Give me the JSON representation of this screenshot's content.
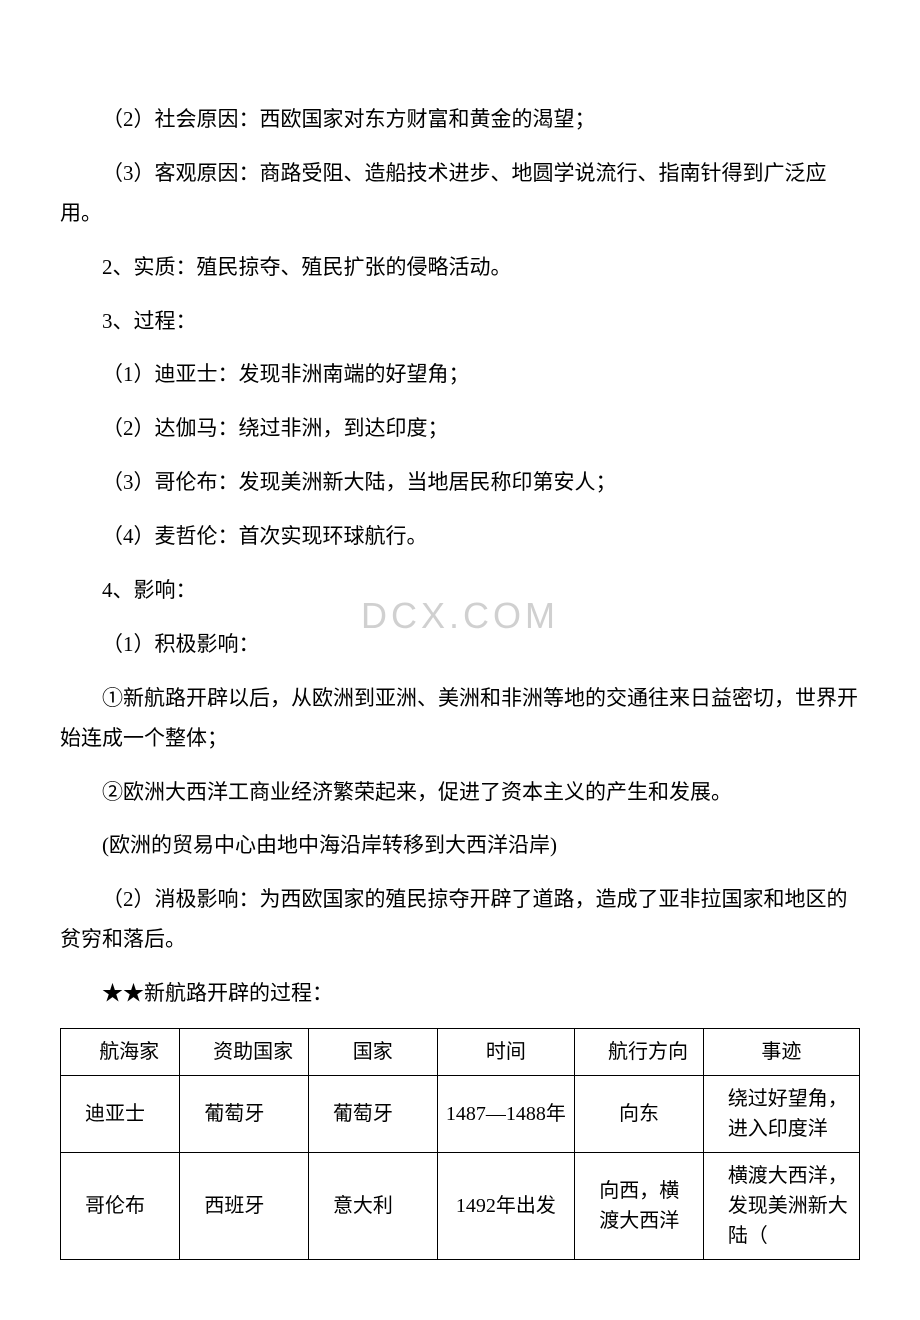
{
  "watermark": "DCX.COM",
  "paragraphs": {
    "p1": "（2）社会原因：西欧国家对东方财富和黄金的渴望；",
    "p2": "（3）客观原因：商路受阻、造船技术进步、地圆学说流行、指南针得到广泛应用。",
    "p3": "2、实质：殖民掠夺、殖民扩张的侵略活动。",
    "p4": "3、过程：",
    "p5": "（1）迪亚士：发现非洲南端的好望角；",
    "p6": "（2）达伽马：绕过非洲，到达印度；",
    "p7": "（3）哥伦布：发现美洲新大陆，当地居民称印第安人；",
    "p8": "（4）麦哲伦：首次实现环球航行。",
    "p9": "4、影响：",
    "p10": "（1）积极影响：",
    "p11": "①新航路开辟以后，从欧洲到亚洲、美洲和非洲等地的交通往来日益密切，世界开始连成一个整体；",
    "p12": "②欧洲大西洋工商业经济繁荣起来，促进了资本主义的产生和发展。",
    "p13": "(欧洲的贸易中心由地中海沿岸转移到大西洋沿岸)",
    "p14": "（2）消极影响：为西欧国家的殖民掠夺开辟了道路，造成了亚非拉国家和地区的贫穷和落后。",
    "p15": "★★新航路开辟的过程："
  },
  "table": {
    "headers": {
      "c1": "航海家",
      "c2": "资助国家",
      "c3": "国家",
      "c4": "时间",
      "c5": "航行方向",
      "c6": "事迹"
    },
    "row1": {
      "c1": "迪亚士",
      "c2": "葡萄牙",
      "c3": "葡萄牙",
      "c4": "1487—1488年",
      "c5": "向东",
      "c6": "绕过好望角，进入印度洋"
    },
    "row2": {
      "c1": "哥伦布",
      "c2": "西班牙",
      "c3": "意大利",
      "c4": "1492年出发",
      "c5": "向西，横渡大西洋",
      "c6": "横渡大西洋，发现美洲新大陆（"
    }
  }
}
